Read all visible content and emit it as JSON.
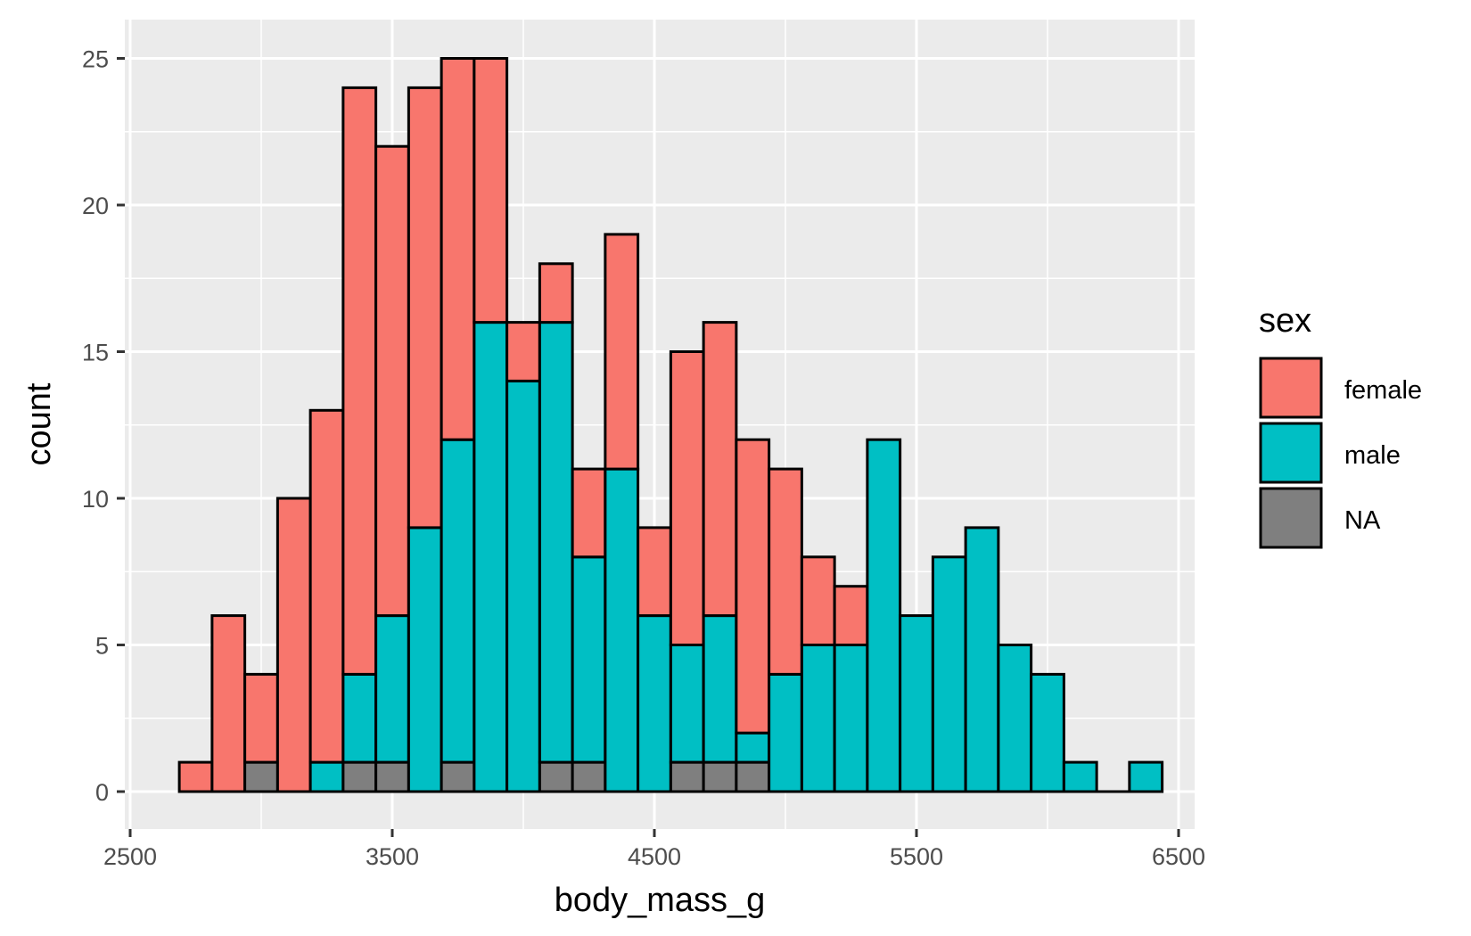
{
  "chart_data": {
    "type": "bar",
    "subtype": "stacked-histogram",
    "title": "",
    "xlabel": "body_mass_g",
    "ylabel": "count",
    "xlim": [
      2500,
      6500
    ],
    "ylim": [
      0,
      25
    ],
    "x_ticks": [
      "2500",
      "3500",
      "4500",
      "5500",
      "6500"
    ],
    "y_ticks": [
      "0",
      "5",
      "10",
      "15",
      "20",
      "25"
    ],
    "grid": true,
    "legend": {
      "title": "sex",
      "position": "right"
    },
    "bin_width": 125,
    "bin_starts": [
      2687.5,
      2812.5,
      2937.5,
      3062.5,
      3187.5,
      3312.5,
      3437.5,
      3562.5,
      3687.5,
      3812.5,
      3937.5,
      4062.5,
      4187.5,
      4312.5,
      4437.5,
      4562.5,
      4687.5,
      4812.5,
      4937.5,
      5062.5,
      5187.5,
      5312.5,
      5437.5,
      5562.5,
      5687.5,
      5812.5,
      5937.5,
      6062.5,
      6187.5,
      6312.5
    ],
    "series": [
      {
        "name": "female",
        "color": "#F8766D",
        "values": [
          1,
          6,
          3,
          10,
          12,
          20,
          16,
          15,
          13,
          9,
          2,
          2,
          3,
          8,
          3,
          10,
          10,
          10,
          7,
          3,
          2,
          0,
          0,
          0,
          0,
          0,
          0,
          0,
          0,
          0
        ]
      },
      {
        "name": "male",
        "color": "#00BFC4",
        "values": [
          0,
          0,
          0,
          0,
          1,
          3,
          5,
          9,
          11,
          16,
          14,
          15,
          7,
          11,
          6,
          4,
          5,
          1,
          4,
          5,
          5,
          12,
          6,
          8,
          9,
          5,
          4,
          1,
          0,
          1
        ]
      },
      {
        "name": "NA",
        "color": "#7F7F7F",
        "values": [
          0,
          0,
          1,
          0,
          0,
          1,
          1,
          0,
          1,
          0,
          0,
          1,
          1,
          0,
          0,
          1,
          1,
          1,
          0,
          0,
          0,
          0,
          0,
          0,
          0,
          0,
          0,
          0,
          0,
          0
        ]
      }
    ]
  }
}
